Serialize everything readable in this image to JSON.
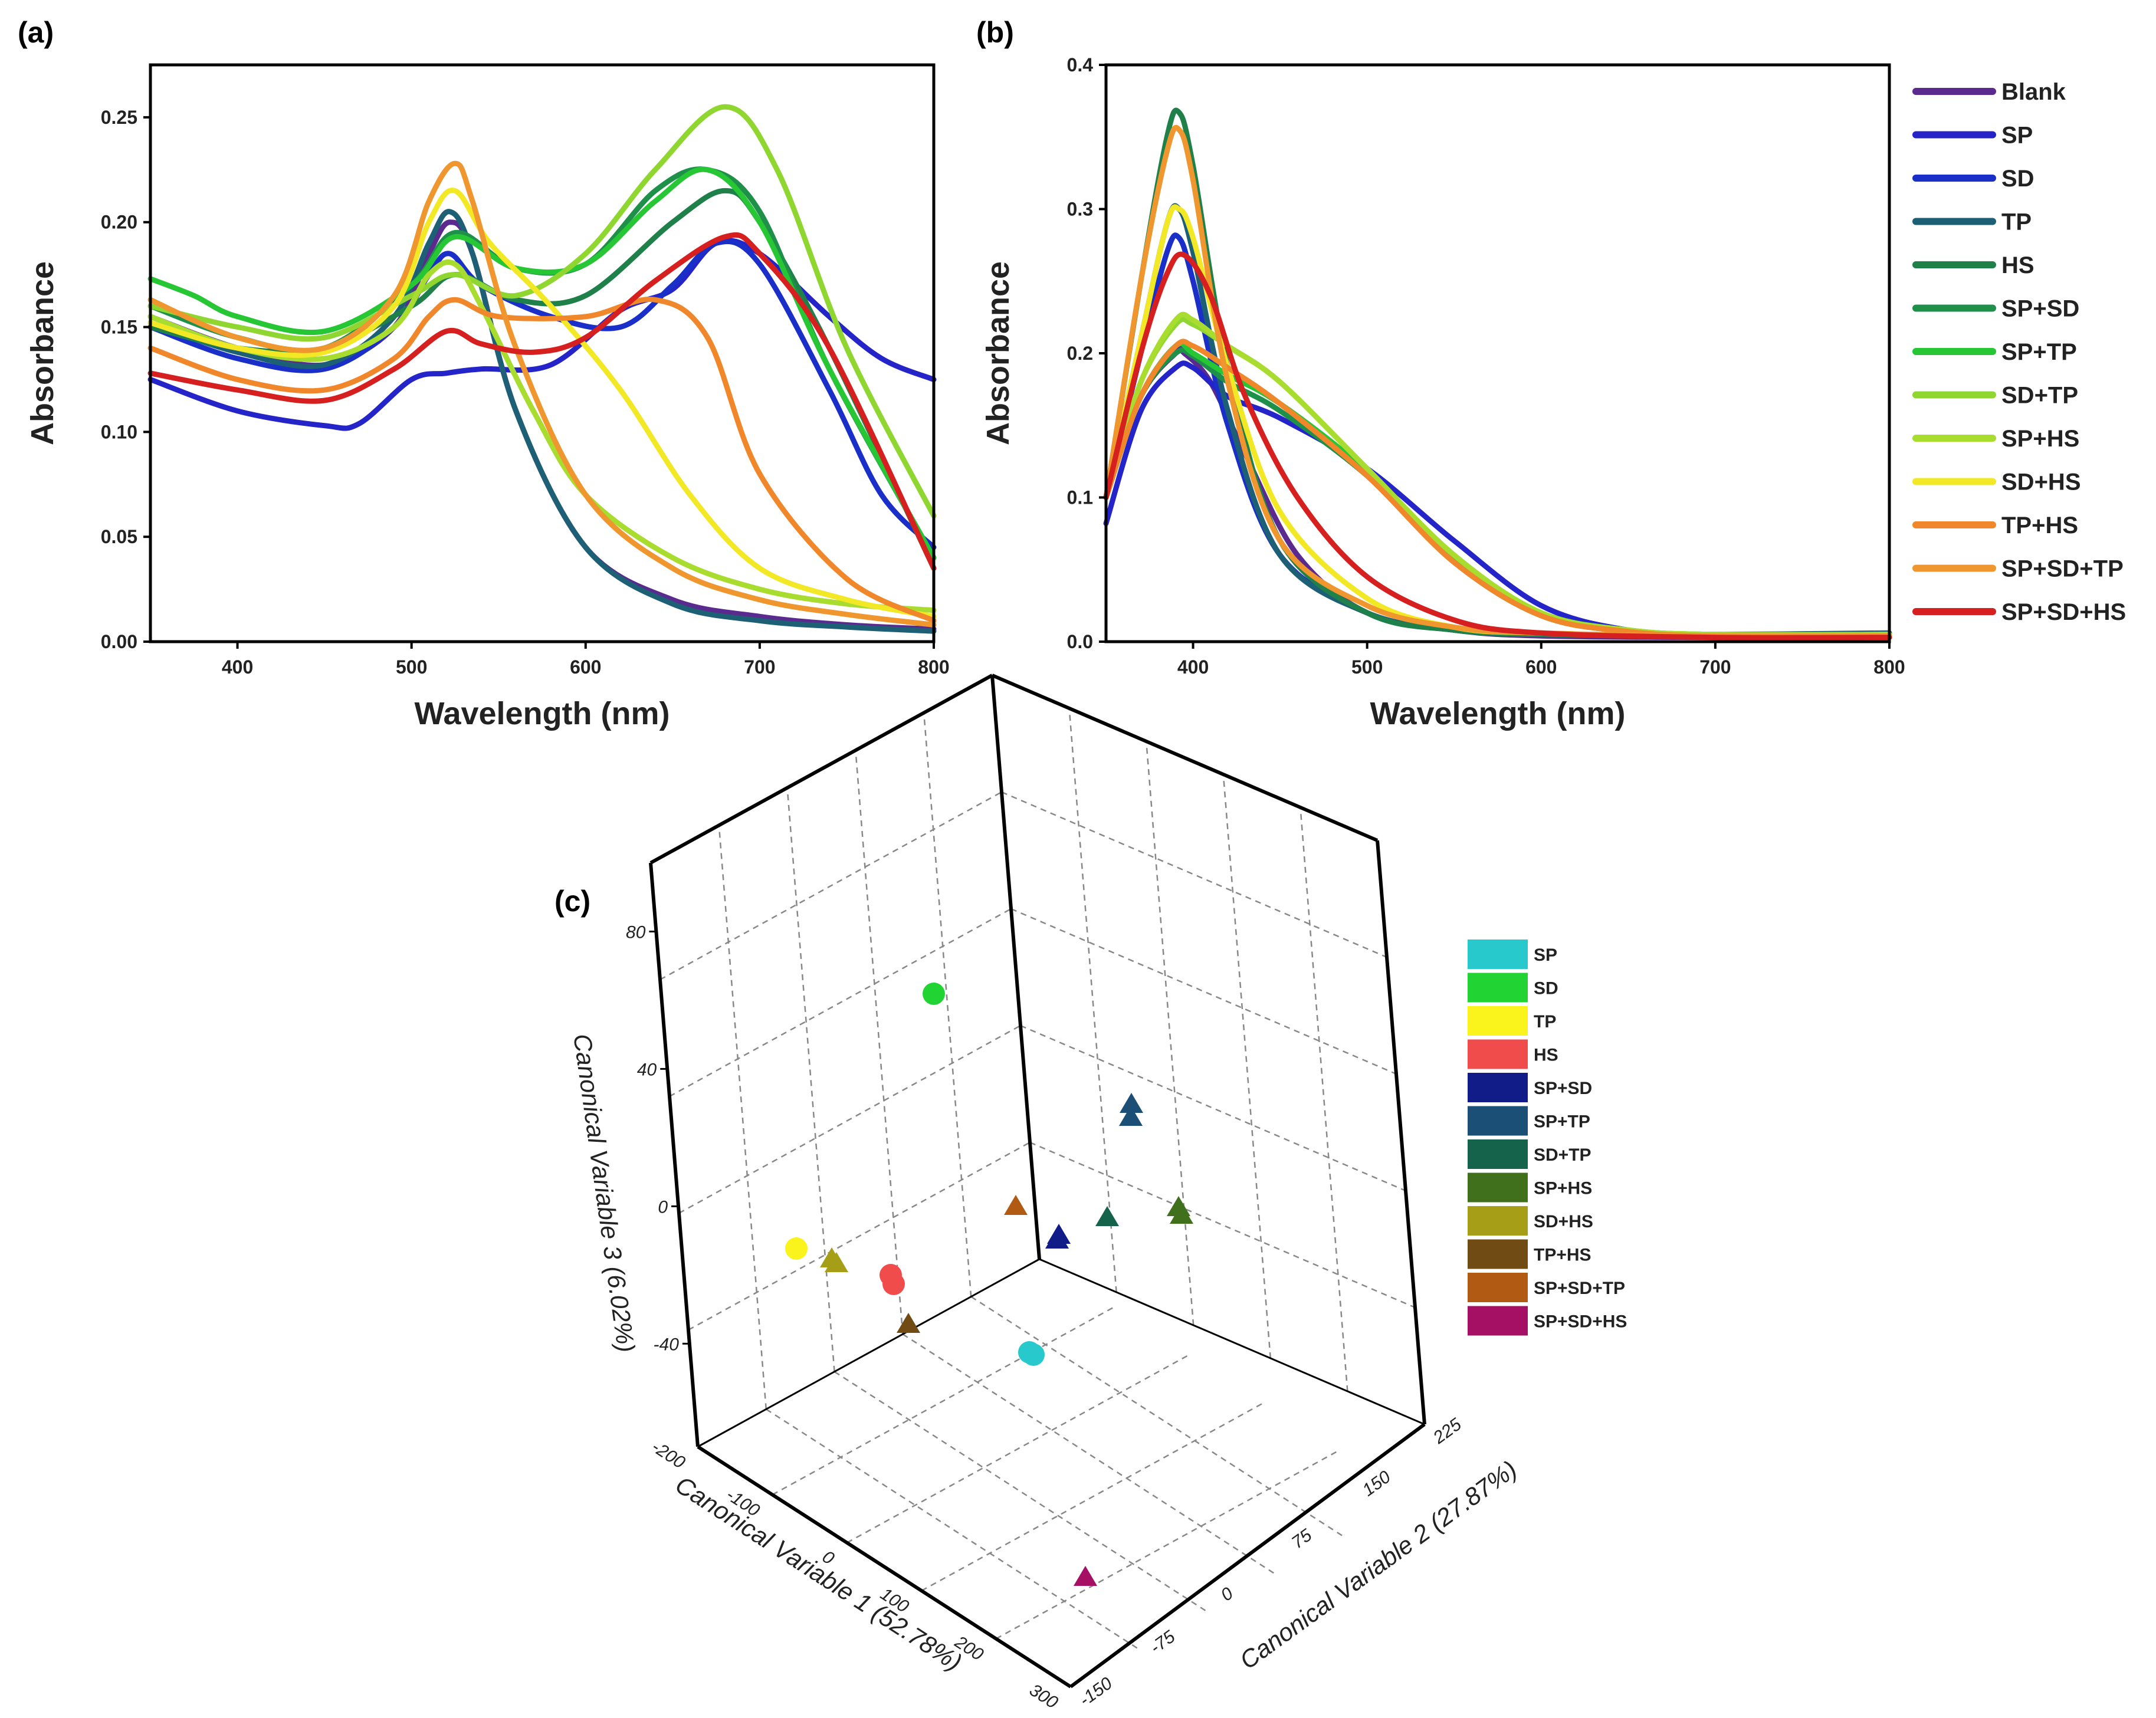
{
  "chart_data": [
    {
      "panel": "(a)",
      "type": "line",
      "xlabel": "Wavelength (nm)",
      "ylabel": "Absorbance",
      "xlim": [
        350,
        800
      ],
      "ylim": [
        0,
        0.275
      ],
      "xticks": [
        "400",
        "500",
        "600",
        "700",
        "800"
      ],
      "yticks": [
        "0.00",
        "0.05",
        "0.10",
        "0.15",
        "0.20",
        "0.25"
      ],
      "grid": false,
      "series": [
        {
          "color": "#5b2a8e",
          "x": [
            350,
            400,
            450,
            490,
            510,
            522,
            535,
            560,
            600,
            650,
            700,
            750,
            800
          ],
          "y": [
            0.155,
            0.14,
            0.132,
            0.15,
            0.185,
            0.2,
            0.185,
            0.11,
            0.045,
            0.02,
            0.012,
            0.008,
            0.006
          ]
        },
        {
          "color": "#2424c8",
          "x": [
            350,
            400,
            450,
            470,
            500,
            520,
            540,
            580,
            620,
            650,
            675,
            700,
            740,
            770,
            800
          ],
          "y": [
            0.125,
            0.11,
            0.103,
            0.104,
            0.125,
            0.128,
            0.13,
            0.132,
            0.158,
            0.168,
            0.19,
            0.185,
            0.155,
            0.135,
            0.125
          ]
        },
        {
          "color": "#1a2ec8",
          "x": [
            350,
            400,
            450,
            490,
            510,
            522,
            540,
            580,
            620,
            650,
            675,
            700,
            740,
            770,
            800
          ],
          "y": [
            0.15,
            0.135,
            0.13,
            0.15,
            0.175,
            0.185,
            0.17,
            0.155,
            0.15,
            0.17,
            0.19,
            0.18,
            0.12,
            0.07,
            0.045
          ]
        },
        {
          "color": "#1d5f74",
          "x": [
            350,
            400,
            450,
            490,
            510,
            522,
            535,
            560,
            600,
            650,
            700,
            750,
            800
          ],
          "y": [
            0.152,
            0.138,
            0.132,
            0.155,
            0.19,
            0.205,
            0.185,
            0.11,
            0.045,
            0.018,
            0.01,
            0.007,
            0.005
          ]
        },
        {
          "color": "#20804a",
          "x": [
            350,
            400,
            450,
            500,
            525,
            560,
            600,
            650,
            680,
            700,
            740,
            800
          ],
          "y": [
            0.15,
            0.14,
            0.14,
            0.16,
            0.175,
            0.163,
            0.165,
            0.2,
            0.215,
            0.2,
            0.14,
            0.035
          ]
        },
        {
          "color": "#1f9049",
          "x": [
            350,
            400,
            450,
            500,
            525,
            560,
            600,
            640,
            670,
            700,
            740,
            800
          ],
          "y": [
            0.16,
            0.145,
            0.14,
            0.17,
            0.195,
            0.178,
            0.18,
            0.215,
            0.225,
            0.205,
            0.13,
            0.04
          ]
        },
        {
          "color": "#27c634",
          "x": [
            350,
            375,
            400,
            450,
            500,
            525,
            560,
            600,
            640,
            670,
            700,
            740,
            800
          ],
          "y": [
            0.173,
            0.165,
            0.155,
            0.148,
            0.17,
            0.193,
            0.178,
            0.18,
            0.21,
            0.225,
            0.2,
            0.13,
            0.04
          ]
        },
        {
          "color": "#8fd630",
          "x": [
            350,
            400,
            450,
            500,
            525,
            560,
            600,
            640,
            680,
            710,
            750,
            800
          ],
          "y": [
            0.16,
            0.15,
            0.145,
            0.165,
            0.175,
            0.165,
            0.185,
            0.225,
            0.255,
            0.225,
            0.14,
            0.06
          ]
        },
        {
          "color": "#a8dc2e",
          "x": [
            350,
            400,
            450,
            490,
            510,
            525,
            540,
            570,
            600,
            650,
            700,
            750,
            800
          ],
          "y": [
            0.155,
            0.14,
            0.135,
            0.15,
            0.175,
            0.18,
            0.16,
            0.11,
            0.07,
            0.04,
            0.025,
            0.018,
            0.015
          ]
        },
        {
          "color": "#f2e826",
          "x": [
            350,
            400,
            450,
            490,
            510,
            525,
            545,
            580,
            620,
            660,
            700,
            750,
            800
          ],
          "y": [
            0.152,
            0.14,
            0.138,
            0.16,
            0.2,
            0.215,
            0.19,
            0.16,
            0.12,
            0.07,
            0.035,
            0.02,
            0.012
          ]
        },
        {
          "color": "#f0872a",
          "x": [
            350,
            400,
            450,
            490,
            510,
            525,
            550,
            600,
            640,
            670,
            700,
            750,
            800
          ],
          "y": [
            0.14,
            0.125,
            0.12,
            0.135,
            0.155,
            0.163,
            0.155,
            0.155,
            0.163,
            0.145,
            0.08,
            0.03,
            0.01
          ]
        },
        {
          "color": "#f0962f",
          "x": [
            350,
            400,
            450,
            490,
            510,
            525,
            535,
            560,
            600,
            650,
            700,
            750,
            800
          ],
          "y": [
            0.163,
            0.145,
            0.14,
            0.165,
            0.21,
            0.228,
            0.21,
            0.14,
            0.07,
            0.035,
            0.02,
            0.013,
            0.008
          ]
        },
        {
          "color": "#d62020",
          "x": [
            350,
            400,
            450,
            490,
            520,
            540,
            570,
            600,
            640,
            680,
            700,
            740,
            800
          ],
          "y": [
            0.128,
            0.12,
            0.115,
            0.13,
            0.148,
            0.142,
            0.138,
            0.145,
            0.172,
            0.193,
            0.185,
            0.14,
            0.035
          ]
        }
      ]
    },
    {
      "panel": "(b)",
      "type": "line",
      "xlabel": "Wavelength (nm)",
      "ylabel": "Absorbance",
      "xlim": [
        350,
        800
      ],
      "ylim": [
        0,
        0.4
      ],
      "xticks": [
        "400",
        "500",
        "600",
        "700",
        "800"
      ],
      "yticks": [
        "0.0",
        "0.1",
        "0.2",
        "0.3",
        "0.4"
      ],
      "legend": "right",
      "grid": false,
      "series": [
        {
          "name": "Blank",
          "color": "#5b2a8e",
          "x": [
            350,
            370,
            390,
            395,
            410,
            430,
            460,
            500,
            550,
            600,
            700,
            800
          ],
          "y": [
            0.1,
            0.17,
            0.2,
            0.2,
            0.18,
            0.13,
            0.06,
            0.02,
            0.008,
            0.004,
            0.003,
            0.003
          ]
        },
        {
          "name": "SP",
          "color": "#2424c8",
          "x": [
            350,
            370,
            390,
            400,
            420,
            450,
            500,
            550,
            600,
            650,
            700,
            800
          ],
          "y": [
            0.082,
            0.16,
            0.19,
            0.19,
            0.17,
            0.155,
            0.12,
            0.07,
            0.025,
            0.008,
            0.005,
            0.005
          ]
        },
        {
          "name": "SD",
          "color": "#1a2ec8",
          "x": [
            350,
            370,
            385,
            392,
            400,
            420,
            450,
            500,
            550,
            600,
            700,
            800
          ],
          "y": [
            0.1,
            0.2,
            0.27,
            0.28,
            0.25,
            0.15,
            0.06,
            0.02,
            0.008,
            0.005,
            0.004,
            0.004
          ]
        },
        {
          "name": "TP",
          "color": "#1d5f74",
          "x": [
            350,
            370,
            385,
            392,
            400,
            420,
            450,
            500,
            550,
            600,
            700,
            800
          ],
          "y": [
            0.1,
            0.21,
            0.29,
            0.3,
            0.27,
            0.16,
            0.06,
            0.02,
            0.008,
            0.005,
            0.005,
            0.006
          ]
        },
        {
          "name": "HS",
          "color": "#20804a",
          "x": [
            350,
            370,
            385,
            392,
            400,
            420,
            450,
            500,
            550,
            600,
            700,
            800
          ],
          "y": [
            0.1,
            0.25,
            0.35,
            0.367,
            0.33,
            0.19,
            0.07,
            0.02,
            0.008,
            0.005,
            0.004,
            0.004
          ]
        },
        {
          "name": "SP+SD",
          "color": "#1f9049",
          "x": [
            350,
            370,
            390,
            400,
            420,
            450,
            500,
            550,
            600,
            650,
            700,
            800
          ],
          "y": [
            0.1,
            0.17,
            0.2,
            0.198,
            0.18,
            0.16,
            0.115,
            0.055,
            0.018,
            0.007,
            0.004,
            0.004
          ]
        },
        {
          "name": "SP+TP",
          "color": "#27c634",
          "x": [
            350,
            370,
            390,
            400,
            420,
            450,
            500,
            550,
            600,
            650,
            700,
            800
          ],
          "y": [
            0.1,
            0.17,
            0.205,
            0.2,
            0.185,
            0.165,
            0.118,
            0.058,
            0.02,
            0.008,
            0.005,
            0.005
          ]
        },
        {
          "name": "SD+TP",
          "color": "#8fd630",
          "x": [
            350,
            370,
            390,
            400,
            420,
            450,
            500,
            550,
            600,
            650,
            700,
            800
          ],
          "y": [
            0.1,
            0.18,
            0.22,
            0.22,
            0.205,
            0.18,
            0.12,
            0.06,
            0.02,
            0.008,
            0.005,
            0.005
          ]
        },
        {
          "name": "SP+HS",
          "color": "#a8dc2e",
          "x": [
            350,
            370,
            390,
            400,
            420,
            450,
            500,
            550,
            600,
            650,
            700,
            800
          ],
          "y": [
            0.1,
            0.18,
            0.223,
            0.223,
            0.205,
            0.18,
            0.12,
            0.06,
            0.02,
            0.008,
            0.005,
            0.005
          ]
        },
        {
          "name": "SD+HS",
          "color": "#f2e826",
          "x": [
            350,
            370,
            385,
            392,
            400,
            420,
            450,
            500,
            550,
            600,
            700,
            800
          ],
          "y": [
            0.1,
            0.21,
            0.29,
            0.3,
            0.28,
            0.19,
            0.09,
            0.03,
            0.01,
            0.006,
            0.004,
            0.004
          ]
        },
        {
          "name": "TP+HS",
          "color": "#f0872a",
          "x": [
            350,
            370,
            390,
            400,
            420,
            450,
            500,
            550,
            600,
            650,
            700,
            800
          ],
          "y": [
            0.1,
            0.17,
            0.205,
            0.205,
            0.19,
            0.165,
            0.115,
            0.055,
            0.018,
            0.007,
            0.004,
            0.004
          ]
        },
        {
          "name": "SP+SD+TP",
          "color": "#f0962f",
          "x": [
            350,
            370,
            385,
            392,
            400,
            420,
            450,
            500,
            550,
            600,
            700,
            800
          ],
          "y": [
            0.1,
            0.25,
            0.34,
            0.355,
            0.32,
            0.18,
            0.07,
            0.025,
            0.01,
            0.006,
            0.004,
            0.004
          ]
        },
        {
          "name": "SP+SD+HS",
          "color": "#d62020",
          "x": [
            350,
            370,
            385,
            395,
            410,
            430,
            460,
            500,
            550,
            600,
            700,
            800
          ],
          "y": [
            0.1,
            0.2,
            0.255,
            0.268,
            0.24,
            0.17,
            0.1,
            0.045,
            0.015,
            0.006,
            0.003,
            0.003
          ]
        }
      ]
    },
    {
      "panel": "(c)",
      "type": "scatter",
      "xlabel": "Canonical Variable 1 (52.78%)",
      "ylabel": "Canonical Variable 2 (27.87%)",
      "zlabel": "Canonical Variable 3 (6.02%)",
      "xticks": [
        "-200",
        "-100",
        "0",
        "100",
        "200",
        "300"
      ],
      "yticks": [
        "-150",
        "-75",
        "0",
        "75",
        "150",
        "225"
      ],
      "zticks": [
        "-40",
        "0",
        "40",
        "80"
      ],
      "legend": "right",
      "grid": true,
      "series": [
        {
          "name": "SP",
          "color": "#27c9cc",
          "marker": "circle"
        },
        {
          "name": "SD",
          "color": "#22d334",
          "marker": "circle"
        },
        {
          "name": "TP",
          "color": "#fbf31c",
          "marker": "circle"
        },
        {
          "name": "HS",
          "color": "#f04c4c",
          "marker": "circle"
        },
        {
          "name": "SP+SD",
          "color": "#121c88",
          "marker": "triangle"
        },
        {
          "name": "SP+TP",
          "color": "#1b4f76",
          "marker": "triangle"
        },
        {
          "name": "SD+TP",
          "color": "#16634c",
          "marker": "triangle"
        },
        {
          "name": "SP+HS",
          "color": "#41701d",
          "marker": "triangle"
        },
        {
          "name": "SD+HS",
          "color": "#a59e16",
          "marker": "triangle"
        },
        {
          "name": "TP+HS",
          "color": "#704b14",
          "marker": "triangle"
        },
        {
          "name": "SP+SD+TP",
          "color": "#b15a14",
          "marker": "triangle"
        },
        {
          "name": "SP+SD+HS",
          "color": "#a61064",
          "marker": "triangle"
        }
      ]
    }
  ]
}
